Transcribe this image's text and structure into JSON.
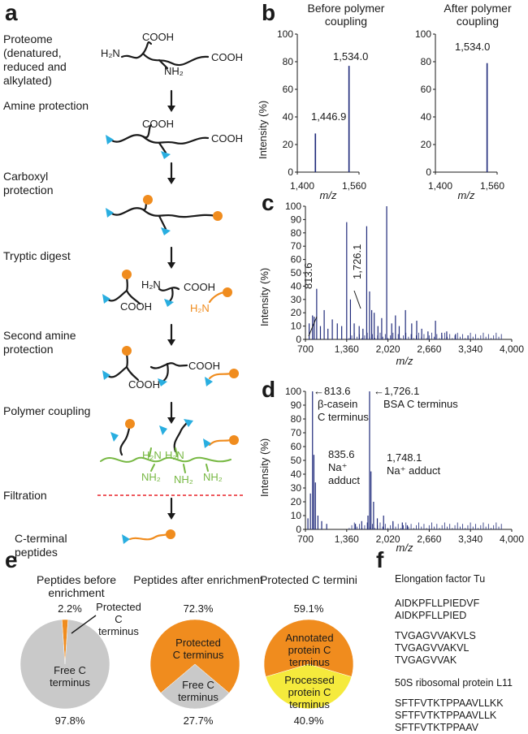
{
  "panels": {
    "a": "a",
    "b": "b",
    "c": "c",
    "d": "d",
    "e": "e",
    "f": "f"
  },
  "panel_a": {
    "steps": [
      "Proteome (denatured, reduced and alkylated)",
      "Amine protection",
      "Carboxyl protection",
      "Tryptic digest",
      "Second amine protection",
      "Polymer coupling",
      "Filtration",
      "C-terminal peptides"
    ],
    "chem": {
      "h2n": "H₂N",
      "cooh": "COOH",
      "nh2": "NH₂"
    },
    "colors": {
      "backbone": "#1a1a1a",
      "amine_protect": "#29aee0",
      "carboxyl_protect": "#f08c1e",
      "polymer": "#77b843",
      "filter": "#e8242a"
    }
  },
  "panel_b": {
    "left_title": "Before polymer coupling",
    "right_title": "After polymer coupling",
    "peak_labels_left": [
      "1,446.9",
      "1,534.0"
    ],
    "peak_labels_right": [
      "1,534.0"
    ],
    "yticks": [
      "0",
      "20",
      "40",
      "60",
      "80",
      "100"
    ],
    "xticks": [
      "1,400",
      "1,560"
    ],
    "ylabel": "Intensity (%)",
    "xlabel": "m/z"
  },
  "panel_c": {
    "yticks": [
      "0",
      "10",
      "20",
      "30",
      "40",
      "50",
      "60",
      "70",
      "80",
      "90",
      "100"
    ],
    "xticks": [
      "700",
      "1,360",
      "2,020",
      "2,660",
      "3,340",
      "4,000"
    ],
    "ylabel": "Intensity (%)",
    "xlabel": "m/z",
    "annotations": [
      "813.6",
      "1,726.1"
    ]
  },
  "panel_d": {
    "yticks": [
      "0",
      "10",
      "20",
      "30",
      "40",
      "50",
      "60",
      "70",
      "80",
      "90",
      "100"
    ],
    "xticks": [
      "700",
      "1,360",
      "2,020",
      "2,660",
      "3,340",
      "4,000"
    ],
    "ylabel": "Intensity (%)",
    "xlabel": "m/z",
    "ann_8136": "←813.6",
    "ann_8136_sub": [
      "β-casein",
      "C terminus"
    ],
    "ann_17261": "←1,726.1",
    "ann_17261_sub": "BSA C terminus",
    "ann_8356": "835.6",
    "ann_8356_sub": [
      "Na⁺",
      "adduct"
    ],
    "ann_17481": "1,748.1",
    "ann_17481_sub": "Na⁺ adduct"
  },
  "chart_data": [
    {
      "type": "bar",
      "title": "Before polymer coupling",
      "xlabel": "m/z",
      "ylabel": "Intensity (%)",
      "xlim": [
        1400,
        1560
      ],
      "ylim": [
        0,
        100
      ],
      "x": [
        1446.9,
        1534.0
      ],
      "values": [
        28,
        77
      ]
    },
    {
      "type": "bar",
      "title": "After polymer coupling",
      "xlabel": "m/z",
      "ylabel": "Intensity (%)",
      "xlim": [
        1400,
        1560
      ],
      "ylim": [
        0,
        100
      ],
      "x": [
        1534.0
      ],
      "values": [
        79
      ]
    },
    {
      "type": "bar",
      "xlabel": "m/z",
      "ylabel": "Intensity (%)",
      "xlim": [
        700,
        4000
      ],
      "ylim": [
        0,
        100
      ],
      "x": [
        760,
        813.6,
        840,
        880,
        940,
        1000,
        1060,
        1130,
        1210,
        1280,
        1360,
        1420,
        1480,
        1560,
        1620,
        1680,
        1726.1,
        1760,
        1800,
        1860,
        1920,
        2000,
        2080,
        2140,
        2200,
        2300,
        2400,
        2480,
        2560,
        2660,
        2780,
        2880,
        2960,
        3100,
        3300
      ],
      "values": [
        12,
        18,
        17,
        38,
        10,
        22,
        8,
        15,
        12,
        10,
        88,
        30,
        12,
        10,
        8,
        85,
        36,
        22,
        20,
        10,
        16,
        100,
        12,
        18,
        10,
        22,
        12,
        14,
        8,
        6,
        14,
        5,
        6,
        4,
        3
      ]
    },
    {
      "type": "bar",
      "xlabel": "m/z",
      "ylabel": "Intensity (%)",
      "xlim": [
        700,
        4000
      ],
      "ylim": [
        0,
        100
      ],
      "x": [
        740,
        780,
        813.6,
        835.6,
        860,
        900,
        960,
        1040,
        1500,
        1600,
        1700,
        1726.1,
        1748.1,
        1790,
        1850,
        1950,
        2100,
        2250,
        2330
      ],
      "values": [
        8,
        26,
        100,
        54,
        34,
        10,
        6,
        4,
        4,
        6,
        10,
        100,
        42,
        20,
        8,
        10,
        6,
        5,
        3
      ]
    },
    {
      "type": "pie",
      "title": "Peptides before enrichment",
      "labels": [
        "Protected C terminus",
        "Free C terminus"
      ],
      "values": [
        2.2,
        97.8
      ],
      "colors": [
        "#f08c1e",
        "#c9c9c9"
      ]
    },
    {
      "type": "pie",
      "title": "Peptides after enrichment",
      "labels": [
        "Protected C terminus",
        "Free C terminus"
      ],
      "values": [
        72.3,
        27.7
      ],
      "colors": [
        "#f08c1e",
        "#c9c9c9"
      ]
    },
    {
      "type": "pie",
      "title": "Protected C termini",
      "labels": [
        "Annotated protein C terminus",
        "Processed protein C terminus"
      ],
      "values": [
        59.1,
        40.9
      ],
      "colors": [
        "#f08c1e",
        "#f5ea3c"
      ]
    }
  ],
  "panel_e": {
    "pie1": {
      "title": "Peptides before enrichment",
      "top_pct": "2.2%",
      "bottom_pct": "97.8%",
      "slice_a": "Protected C terminus",
      "slice_b": "Free C terminus"
    },
    "pie2": {
      "title": "Peptides after enrichment",
      "top_pct": "72.3%",
      "bottom_pct": "27.7%",
      "slice_a": "Protected C terminus",
      "slice_b": "Free C terminus"
    },
    "pie3": {
      "title": "Protected C termini",
      "top_pct": "59.1%",
      "bottom_pct": "40.9%",
      "slice_a": "Annotated protein C terminus",
      "slice_b": "Processed protein C terminus"
    }
  },
  "panel_f": {
    "protein1": "Elongation factor Tu",
    "group1": [
      "AIDKPFLLPIEDVF",
      "AIDKPFLLPIED"
    ],
    "group2": [
      "TVGAGVVAKVLS",
      "TVGAGVVAKVL",
      "TVGAGVVAK"
    ],
    "protein2": "50S ribosomal protein L11",
    "group3": [
      "SFTFVTKTPPAAVLLKK",
      "SFTFVTKTPPAAVLLK",
      "SFTFVTKTPPAAV"
    ]
  }
}
